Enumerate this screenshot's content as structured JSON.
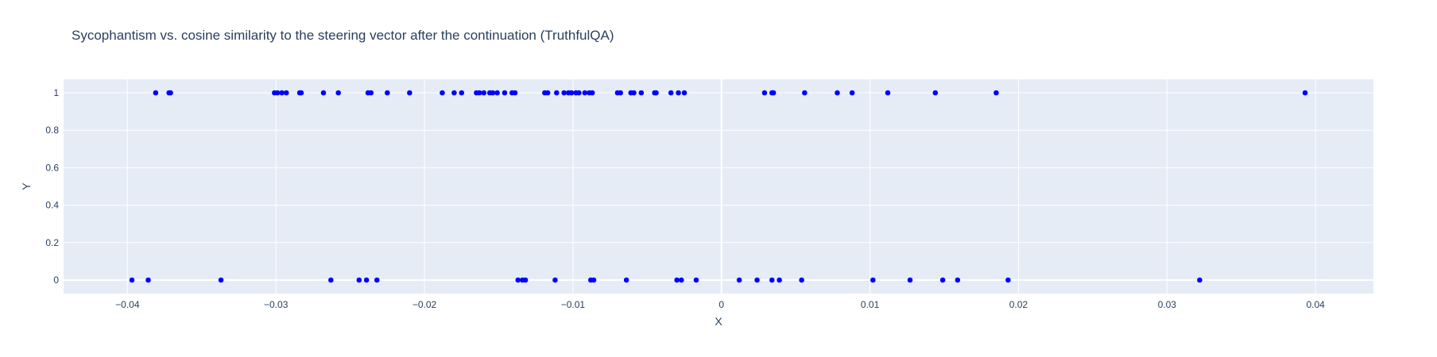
{
  "chart_data": {
    "type": "scatter",
    "title": "Sycophantism vs. cosine similarity to the steering vector after the continuation (TruthfulQA)",
    "xlabel": "X",
    "ylabel": "Y",
    "xlim": [
      -0.0443,
      0.0439
    ],
    "ylim": [
      -0.072,
      1.072
    ],
    "grid": true,
    "legend": "none",
    "x_ticks": [
      {
        "value": -0.04,
        "label": "−0.04"
      },
      {
        "value": -0.03,
        "label": "−0.03"
      },
      {
        "value": -0.02,
        "label": "−0.02"
      },
      {
        "value": -0.01,
        "label": "−0.01"
      },
      {
        "value": 0,
        "label": "0"
      },
      {
        "value": 0.01,
        "label": "0.01"
      },
      {
        "value": 0.02,
        "label": "0.02"
      },
      {
        "value": 0.03,
        "label": "0.03"
      },
      {
        "value": 0.04,
        "label": "0.04"
      }
    ],
    "y_ticks": [
      {
        "value": 0,
        "label": "0"
      },
      {
        "value": 0.2,
        "label": "0.2"
      },
      {
        "value": 0.4,
        "label": "0.4"
      },
      {
        "value": 0.6,
        "label": "0.6"
      },
      {
        "value": 0.8,
        "label": "0.8"
      },
      {
        "value": 1,
        "label": "1"
      }
    ],
    "colors": {
      "marker": "#0000ff",
      "plot_bg": "#e5ecf6",
      "grid": "#ffffff",
      "text": "#2a3f5f"
    },
    "points": [
      {
        "x": -0.0381,
        "y": 1
      },
      {
        "x": -0.0372,
        "y": 1
      },
      {
        "x": -0.0371,
        "y": 1
      },
      {
        "x": -0.0301,
        "y": 1
      },
      {
        "x": -0.0299,
        "y": 1
      },
      {
        "x": -0.0296,
        "y": 1
      },
      {
        "x": -0.0293,
        "y": 1
      },
      {
        "x": -0.0284,
        "y": 1
      },
      {
        "x": -0.0283,
        "y": 1
      },
      {
        "x": -0.0268,
        "y": 1
      },
      {
        "x": -0.0258,
        "y": 1
      },
      {
        "x": -0.0238,
        "y": 1
      },
      {
        "x": -0.0236,
        "y": 1
      },
      {
        "x": -0.0225,
        "y": 1
      },
      {
        "x": -0.021,
        "y": 1
      },
      {
        "x": -0.0188,
        "y": 1
      },
      {
        "x": -0.018,
        "y": 1
      },
      {
        "x": -0.0175,
        "y": 1
      },
      {
        "x": -0.0165,
        "y": 1
      },
      {
        "x": -0.0163,
        "y": 1
      },
      {
        "x": -0.016,
        "y": 1
      },
      {
        "x": -0.0156,
        "y": 1
      },
      {
        "x": -0.0154,
        "y": 1
      },
      {
        "x": -0.0151,
        "y": 1
      },
      {
        "x": -0.0146,
        "y": 1
      },
      {
        "x": -0.0141,
        "y": 1
      },
      {
        "x": -0.0139,
        "y": 1
      },
      {
        "x": -0.0119,
        "y": 1
      },
      {
        "x": -0.0117,
        "y": 1
      },
      {
        "x": -0.0111,
        "y": 1
      },
      {
        "x": -0.0106,
        "y": 1
      },
      {
        "x": -0.0103,
        "y": 1
      },
      {
        "x": -0.0101,
        "y": 1
      },
      {
        "x": -0.0098,
        "y": 1
      },
      {
        "x": -0.0096,
        "y": 1
      },
      {
        "x": -0.0092,
        "y": 1
      },
      {
        "x": -0.0089,
        "y": 1
      },
      {
        "x": -0.0087,
        "y": 1
      },
      {
        "x": -0.007,
        "y": 1
      },
      {
        "x": -0.0068,
        "y": 1
      },
      {
        "x": -0.0061,
        "y": 1
      },
      {
        "x": -0.0059,
        "y": 1
      },
      {
        "x": -0.0054,
        "y": 1
      },
      {
        "x": -0.0045,
        "y": 1
      },
      {
        "x": -0.0044,
        "y": 1
      },
      {
        "x": -0.0034,
        "y": 1
      },
      {
        "x": -0.0029,
        "y": 1
      },
      {
        "x": -0.0025,
        "y": 1
      },
      {
        "x": 0.0029,
        "y": 1
      },
      {
        "x": 0.0034,
        "y": 1
      },
      {
        "x": 0.0035,
        "y": 1
      },
      {
        "x": 0.0056,
        "y": 1
      },
      {
        "x": 0.0078,
        "y": 1
      },
      {
        "x": 0.0088,
        "y": 1
      },
      {
        "x": 0.0112,
        "y": 1
      },
      {
        "x": 0.0144,
        "y": 1
      },
      {
        "x": 0.0185,
        "y": 1
      },
      {
        "x": 0.0393,
        "y": 1
      },
      {
        "x": -0.0397,
        "y": 0
      },
      {
        "x": -0.0386,
        "y": 0
      },
      {
        "x": -0.0337,
        "y": 0
      },
      {
        "x": -0.0263,
        "y": 0
      },
      {
        "x": -0.0244,
        "y": 0
      },
      {
        "x": -0.0239,
        "y": 0
      },
      {
        "x": -0.0232,
        "y": 0
      },
      {
        "x": -0.0137,
        "y": 0
      },
      {
        "x": -0.0134,
        "y": 0
      },
      {
        "x": -0.0132,
        "y": 0
      },
      {
        "x": -0.0112,
        "y": 0
      },
      {
        "x": -0.0088,
        "y": 0
      },
      {
        "x": -0.0086,
        "y": 0
      },
      {
        "x": -0.0064,
        "y": 0
      },
      {
        "x": -0.003,
        "y": 0
      },
      {
        "x": -0.0027,
        "y": 0
      },
      {
        "x": -0.0017,
        "y": 0
      },
      {
        "x": 0.0012,
        "y": 0
      },
      {
        "x": 0.0024,
        "y": 0
      },
      {
        "x": 0.0034,
        "y": 0
      },
      {
        "x": 0.0039,
        "y": 0
      },
      {
        "x": 0.0054,
        "y": 0
      },
      {
        "x": 0.0102,
        "y": 0
      },
      {
        "x": 0.0127,
        "y": 0
      },
      {
        "x": 0.0149,
        "y": 0
      },
      {
        "x": 0.0159,
        "y": 0
      },
      {
        "x": 0.0193,
        "y": 0
      },
      {
        "x": 0.0322,
        "y": 0
      }
    ]
  }
}
